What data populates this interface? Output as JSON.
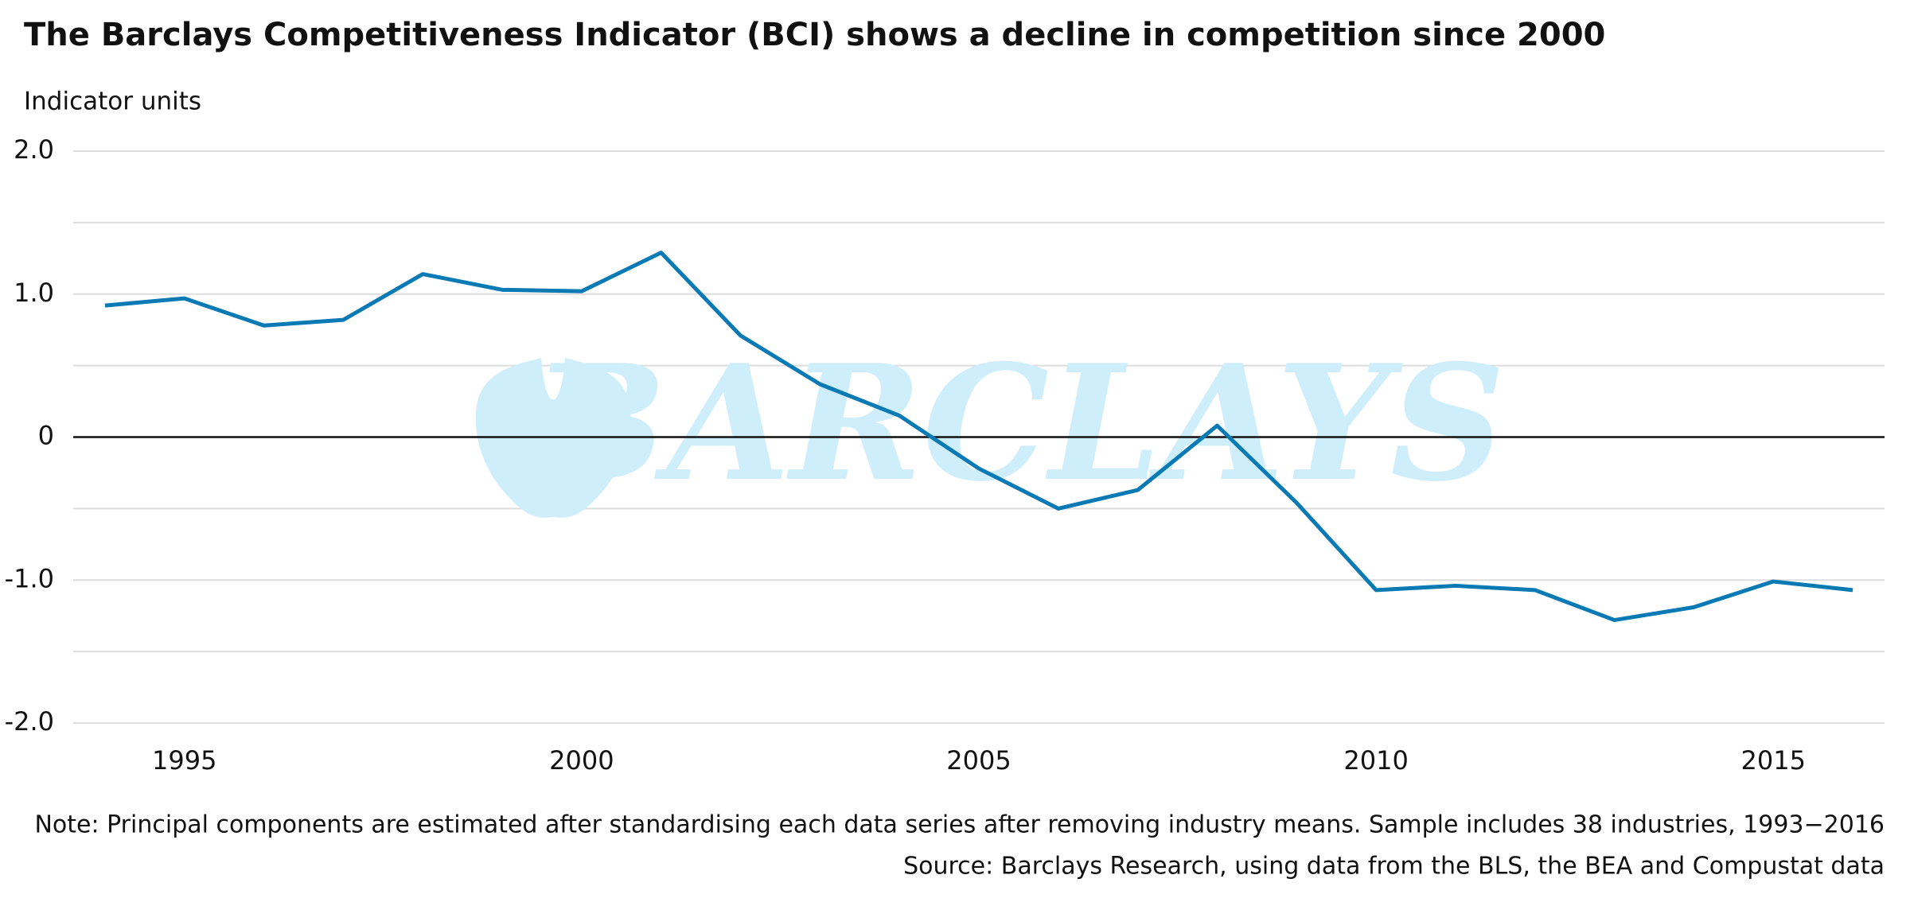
{
  "chart_data": {
    "type": "line",
    "title": "The Barclays Competitiveness Indicator (BCI) shows a decline in competition since 2000",
    "y_label": "Indicator units",
    "watermark": "BARCLAYS",
    "note": "Note: Principal components are estimated after standardising each data series after removing industry means. Sample includes 38 industries, 1993−2016",
    "source": "Source: Barclays Research, using data from the BLS, the BEA and Compustat data",
    "x": [
      1994,
      1995,
      1996,
      1997,
      1998,
      1999,
      2000,
      2001,
      2002,
      2003,
      2004,
      2005,
      2006,
      2007,
      2008,
      2009,
      2010,
      2011,
      2012,
      2013,
      2014,
      2015,
      2016
    ],
    "series": [
      {
        "name": "BCI",
        "color": "#0a7ab5",
        "values": [
          0.92,
          0.97,
          0.78,
          0.82,
          1.14,
          1.03,
          1.02,
          1.29,
          0.71,
          0.37,
          0.15,
          -0.22,
          -0.5,
          -0.37,
          0.08,
          -0.46,
          -1.07,
          -1.04,
          -1.07,
          -1.28,
          -1.19,
          -1.01,
          -1.07
        ]
      }
    ],
    "xlim": [
      1993.6,
      2016.4
    ],
    "xticks": [
      1995,
      2000,
      2005,
      2010,
      2015
    ],
    "ylim": [
      -2,
      2
    ],
    "yticks": [
      {
        "value": 2,
        "label": "2.0"
      },
      {
        "value": 1,
        "label": "1.0"
      },
      0,
      {
        "value": -1,
        "label": "-1.0"
      },
      {
        "value": -2,
        "label": "-2.0"
      }
    ],
    "yminor": [
      1.5,
      0.5,
      -0.5,
      -1.5
    ],
    "grid": true
  }
}
